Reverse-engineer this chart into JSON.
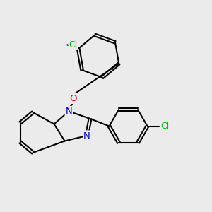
{
  "bg_color": "#ebebeb",
  "bond_color": "#000000",
  "bond_width": 1.5,
  "atom_colors": {
    "N": "#0000ee",
    "O": "#dd0000",
    "Cl": "#00bb00"
  },
  "font_size_atom": 8.5,
  "fig_width": 3.0,
  "fig_height": 3.0,
  "dpi": 100
}
